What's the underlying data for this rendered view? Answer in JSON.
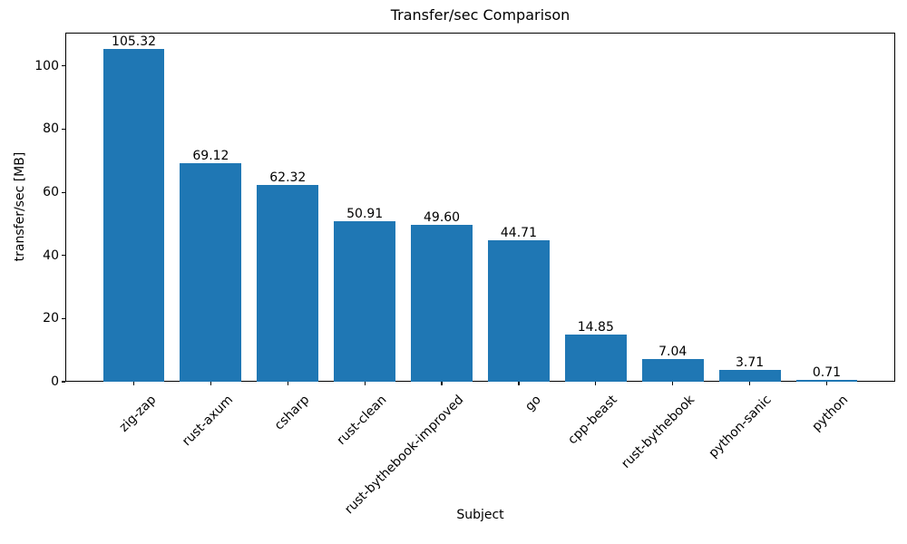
{
  "figure": {
    "background": "#ffffff",
    "text_color": "#000000"
  },
  "chart_data": {
    "type": "bar",
    "title": "Transfer/sec Comparison",
    "xlabel": "Subject",
    "ylabel": "transfer/sec [MB]",
    "categories": [
      "zig-zap",
      "rust-axum",
      "csharp",
      "rust-clean",
      "rust-bythebook-improved",
      "go",
      "cpp-beast",
      "rust-bythebook",
      "python-sanic",
      "python"
    ],
    "values": [
      105.32,
      69.12,
      62.32,
      50.91,
      49.6,
      44.71,
      14.85,
      7.04,
      3.71,
      0.71
    ],
    "value_labels": [
      "105.32",
      "69.12",
      "62.32",
      "50.91",
      "49.60",
      "44.71",
      "14.85",
      "7.04",
      "3.71",
      "0.71"
    ],
    "yticks": [
      0,
      20,
      40,
      60,
      80,
      100
    ],
    "ytick_labels": [
      "0",
      "20",
      "40",
      "60",
      "80",
      "100"
    ],
    "ylim": [
      0,
      110.59
    ],
    "bar_color": "#1f77b4",
    "grid": false,
    "legend": "none",
    "bar_width_fraction": 0.8
  }
}
